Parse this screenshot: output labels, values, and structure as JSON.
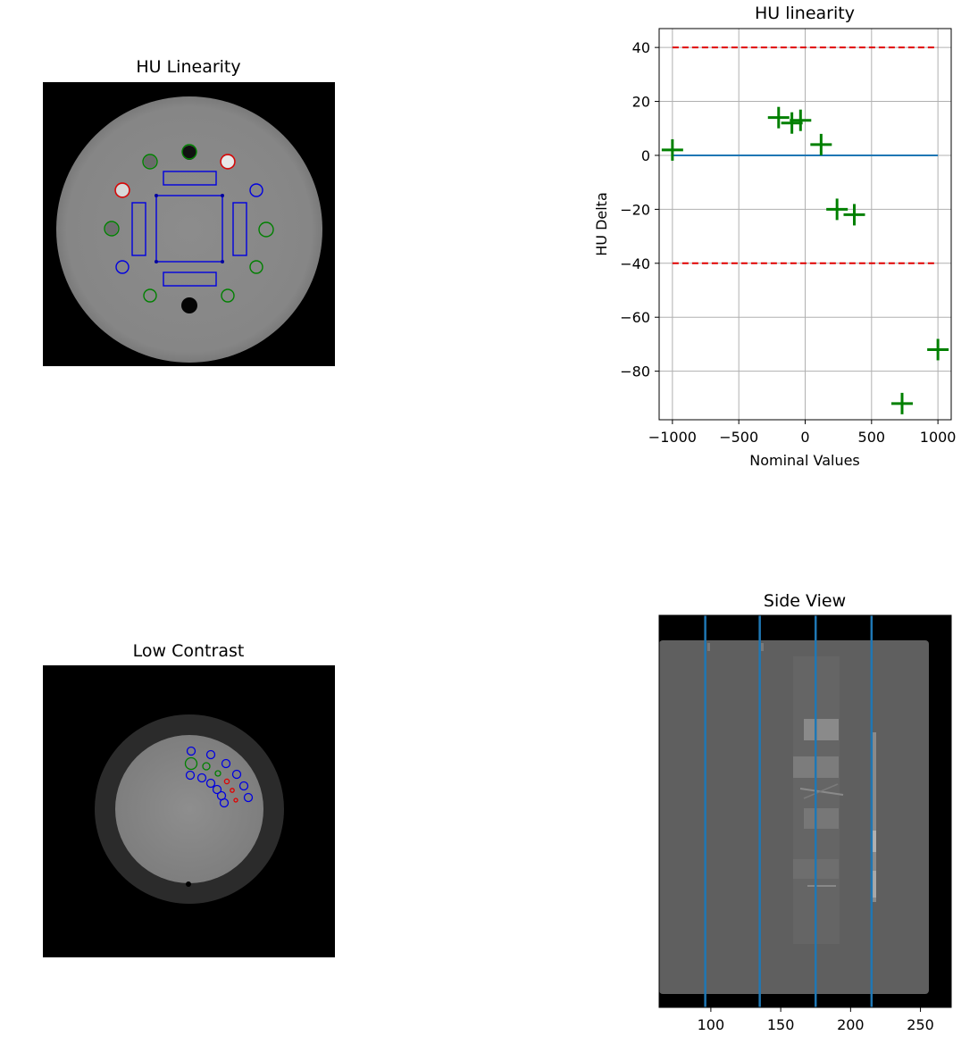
{
  "panels": {
    "hu_image_title": "HU Linearity",
    "low_contrast_title": "Low Contrast",
    "side_view_title": "Side View"
  },
  "chart_data": [
    {
      "type": "scatter",
      "title": "HU linearity",
      "xlabel": "Nominal Values",
      "ylabel": "HU Delta",
      "xlim": [
        -1100,
        1100
      ],
      "ylim": [
        -98,
        47
      ],
      "xticks": [
        -1000,
        -500,
        0,
        500,
        1000
      ],
      "yticks": [
        40,
        20,
        0,
        -20,
        -40,
        -60,
        -80
      ],
      "grid": true,
      "marker": "+",
      "colors": {
        "points": "#008000",
        "limits": "#e00000",
        "zero": "#1f77b4"
      },
      "points": [
        {
          "x": -1000,
          "y": 2
        },
        {
          "x": -200,
          "y": 14
        },
        {
          "x": -100,
          "y": 12
        },
        {
          "x": -35,
          "y": 13
        },
        {
          "x": 120,
          "y": 4
        },
        {
          "x": 240,
          "y": -20
        },
        {
          "x": 370,
          "y": -22
        },
        {
          "x": 730,
          "y": -92
        },
        {
          "x": 1000,
          "y": -72
        }
      ],
      "tolerance_lines": [
        40,
        -40
      ],
      "zero_line": 0
    },
    {
      "type": "image",
      "title": "Side View",
      "xticks": [
        100,
        150,
        200,
        250
      ],
      "xlim": [
        63,
        272
      ],
      "vertical_lines_x": [
        96,
        135,
        175,
        215
      ],
      "colors": {
        "lines": "#1f77b4"
      }
    }
  ]
}
